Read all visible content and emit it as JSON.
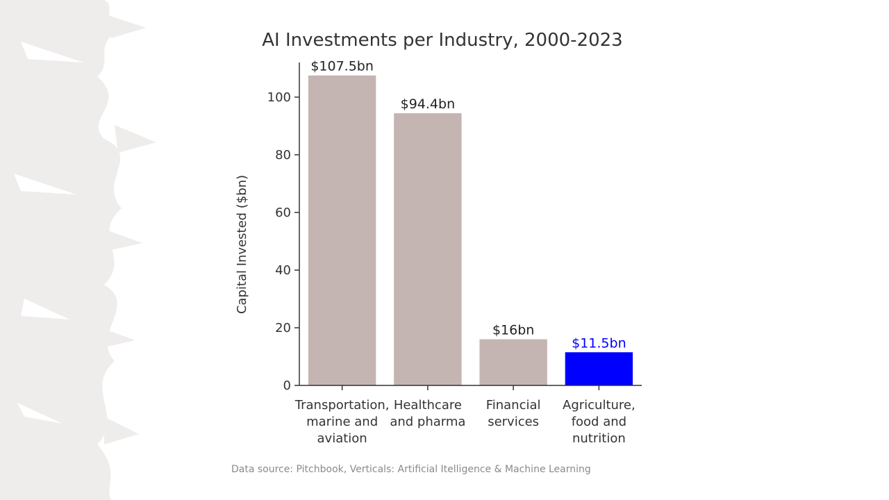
{
  "chart_data": {
    "type": "bar",
    "title": "AI Investments per Industry, 2000-2023",
    "ylabel": "Capital Invested ($bn)",
    "xlabel": "",
    "ylim": [
      0,
      112
    ],
    "yticks": [
      0,
      20,
      40,
      60,
      80,
      100
    ],
    "categories": [
      [
        "Transportation,",
        "marine and",
        "aviation"
      ],
      [
        "Healthcare",
        "and pharma"
      ],
      [
        "Financial",
        "services"
      ],
      [
        "Agriculture,",
        "food and",
        "nutrition"
      ]
    ],
    "values": [
      107.5,
      94.4,
      16,
      11.5
    ],
    "data_labels": [
      "$107.5bn",
      "$94.4bn",
      "$16bn",
      "$11.5bn"
    ],
    "highlight_index": 3,
    "colors": {
      "bar": "#c4b4b2",
      "highlight": "#0000ff",
      "highlight_label": "#0000ff",
      "text": "#333333",
      "decor": "#efecec"
    },
    "grid": false,
    "legend": "none"
  },
  "footer": {
    "source": "Data source: Pitchbook, Verticals: Artificial Itelligence & Machine Learning"
  }
}
